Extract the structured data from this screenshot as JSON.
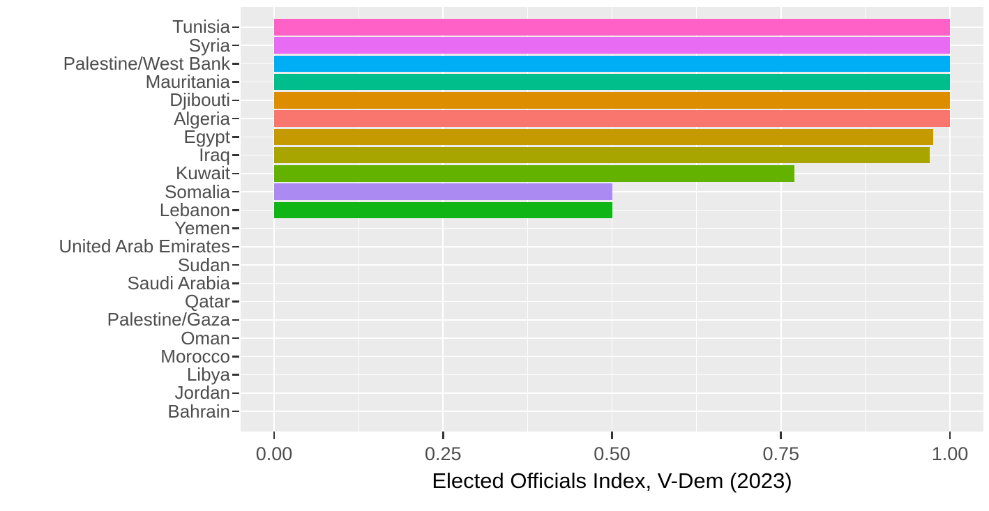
{
  "chart_data": {
    "type": "bar",
    "orientation": "horizontal",
    "xlabel": "Elected Officials Index, V-Dem (2023)",
    "ylabel": "",
    "xlim": [
      0,
      1
    ],
    "x_major_ticks": [
      0,
      0.25,
      0.5,
      0.75,
      1.0
    ],
    "x_tick_labels": [
      "0.00",
      "0.25",
      "0.50",
      "0.75",
      "1.00"
    ],
    "x_minor_ticks": [
      0.125,
      0.375,
      0.625,
      0.875
    ],
    "grid": "white-on-gray",
    "legend_position": "none",
    "categories": [
      "Tunisia",
      "Syria",
      "Palestine/West Bank",
      "Mauritania",
      "Djibouti",
      "Algeria",
      "Egypt",
      "Iraq",
      "Kuwait",
      "Somalia",
      "Lebanon",
      "Yemen",
      "United Arab Emirates",
      "Sudan",
      "Saudi Arabia",
      "Qatar",
      "Palestine/Gaza",
      "Oman",
      "Morocco",
      "Libya",
      "Jordan",
      "Bahrain"
    ],
    "values": [
      1.0,
      1.0,
      1.0,
      1.0,
      1.0,
      1.0,
      0.975,
      0.97,
      0.77,
      0.5,
      0.5,
      0,
      0,
      0,
      0,
      0,
      0,
      0,
      0,
      0,
      0,
      0
    ],
    "bar_colors": [
      "#FF61C7",
      "#E76BF3",
      "#00AEF6",
      "#00BE8C",
      "#DD8D00",
      "#F8766D",
      "#C49A00",
      "#A8A400",
      "#64B200",
      "#AB8BF2",
      "#0FB415",
      null,
      null,
      null,
      null,
      null,
      null,
      null,
      null,
      null,
      null,
      null
    ],
    "colors": {
      "panel_background": "#EBEBEB",
      "gridline": "#FFFFFF",
      "tick_mark": "#333333",
      "axis_text": "#4D4D4D",
      "axis_title": "#000000"
    }
  }
}
